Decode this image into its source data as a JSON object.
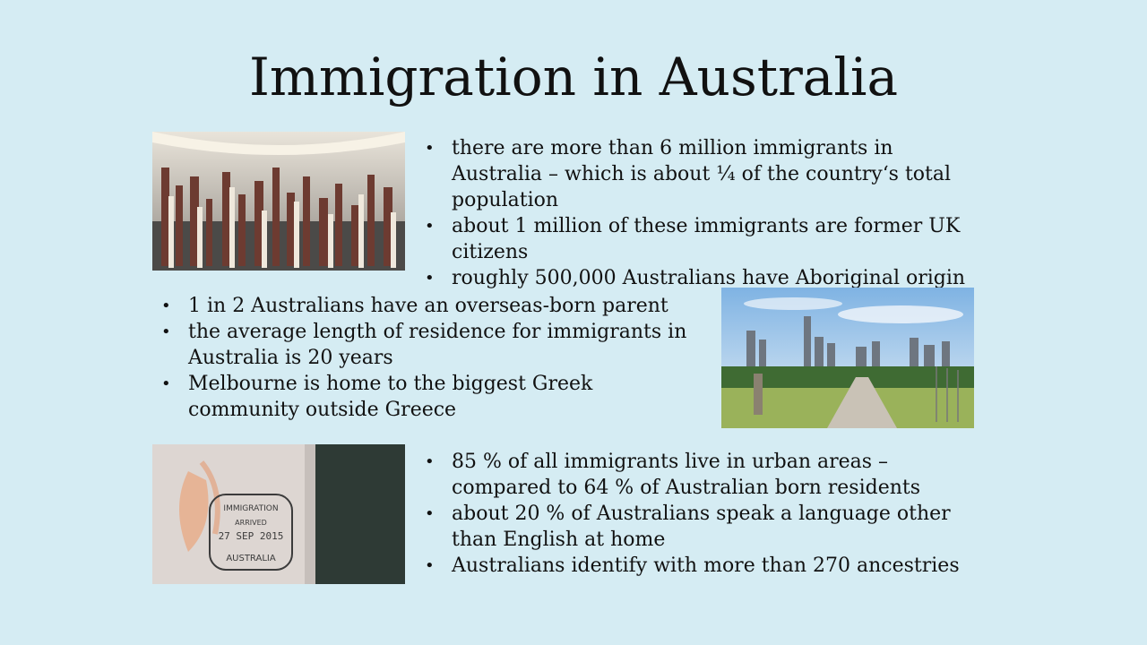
{
  "slide": {
    "title": "Immigration in Australia",
    "section1": {
      "bullets": [
        "there are more than 6 million immigrants in Australia – which is about ¼ of the country‘s total population",
        "about 1 million of these immigrants are former UK citizens",
        "roughly 500,000 Australians have Aboriginal origin"
      ]
    },
    "section2": {
      "bullets": [
        "1 in 2 Australians have an overseas-born parent",
        "the average length of residence for immigrants in Australia is 20 years",
        "Melbourne is home to the biggest Greek community outside Greece"
      ]
    },
    "section3": {
      "bullets": [
        "85 % of all immigrants live in urban areas – compared to 64 % of Australian born residents",
        "about 20 % of Australians speak a language other than English at home",
        "Australians identify with more than 270 ancestries"
      ]
    },
    "stamp": {
      "top": "IMMIGRATION",
      "status": "ARRIVED",
      "date": "27 SEP 2015",
      "bottom": "AUSTRALIA"
    }
  }
}
